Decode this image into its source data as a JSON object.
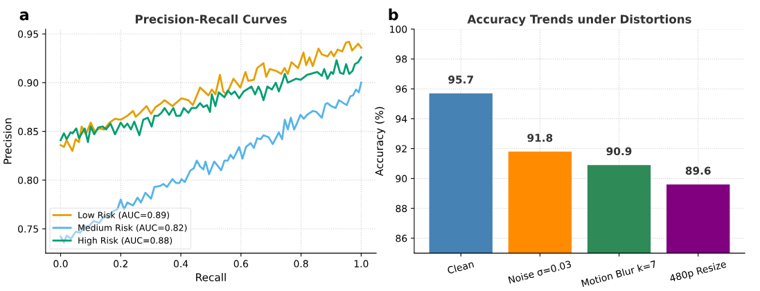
{
  "chart_data": [
    {
      "type": "line",
      "title": "Precision-Recall Curves",
      "xlabel": "Recall",
      "ylabel": "Precision",
      "annotations": [
        "a"
      ],
      "xlim": [
        -0.05,
        1.05
      ],
      "ylim": [
        0.725,
        0.955
      ],
      "xticks": [
        {
          "value": 0,
          "label": "0.0"
        },
        0.2,
        0.4,
        0.6,
        0.8,
        {
          "value": 1,
          "label": "1.0"
        }
      ],
      "yticks": [
        0.75,
        {
          "value": 0.8,
          "label": "0.80"
        },
        0.85,
        {
          "value": 0.9,
          "label": "0.90"
        },
        0.95
      ],
      "grid": true,
      "legend": "bottom left",
      "series": [
        {
          "name": "Low Risk (AUC=0.89)",
          "color": "#e69f00",
          "x": [
            0.0,
            0.011,
            0.02,
            0.039,
            0.05,
            0.061,
            0.07,
            0.084,
            0.1,
            0.114,
            0.129,
            0.144,
            0.163,
            0.181,
            0.2,
            0.222,
            0.241,
            0.25,
            0.264,
            0.286,
            0.301,
            0.316,
            0.331,
            0.346,
            0.372,
            0.402,
            0.425,
            0.44,
            0.464,
            0.492,
            0.503,
            0.515,
            0.53,
            0.541,
            0.552,
            0.575,
            0.598,
            0.615,
            0.624,
            0.643,
            0.654,
            0.675,
            0.684,
            0.696,
            0.718,
            0.734,
            0.745,
            0.756,
            0.768,
            0.79,
            0.808,
            0.817,
            0.828,
            0.839,
            0.858,
            0.869,
            0.888,
            0.9,
            0.909,
            0.922,
            0.937,
            0.949,
            0.96,
            0.97,
            0.99,
            1.0
          ],
          "values": [
            0.836,
            0.834,
            0.841,
            0.83,
            0.842,
            0.839,
            0.855,
            0.847,
            0.859,
            0.85,
            0.853,
            0.852,
            0.859,
            0.863,
            0.862,
            0.866,
            0.871,
            0.865,
            0.869,
            0.876,
            0.868,
            0.875,
            0.878,
            0.882,
            0.876,
            0.884,
            0.882,
            0.877,
            0.895,
            0.887,
            0.893,
            0.888,
            0.908,
            0.891,
            0.888,
            0.904,
            0.895,
            0.911,
            0.902,
            0.903,
            0.915,
            0.92,
            0.906,
            0.914,
            0.912,
            0.909,
            0.915,
            0.909,
            0.921,
            0.915,
            0.931,
            0.918,
            0.926,
            0.917,
            0.935,
            0.929,
            0.927,
            0.932,
            0.927,
            0.934,
            0.932,
            0.941,
            0.942,
            0.933,
            0.94,
            0.936
          ]
        },
        {
          "name": "Medium Risk (AUC=0.82)",
          "color": "#56b4e9",
          "x": [
            0.0,
            0.011,
            0.02,
            0.035,
            0.05,
            0.065,
            0.08,
            0.095,
            0.11,
            0.129,
            0.144,
            0.159,
            0.174,
            0.189,
            0.2,
            0.211,
            0.222,
            0.241,
            0.256,
            0.267,
            0.282,
            0.301,
            0.312,
            0.331,
            0.342,
            0.354,
            0.372,
            0.384,
            0.395,
            0.402,
            0.413,
            0.432,
            0.443,
            0.453,
            0.464,
            0.475,
            0.482,
            0.494,
            0.503,
            0.511,
            0.522,
            0.534,
            0.545,
            0.556,
            0.565,
            0.575,
            0.594,
            0.605,
            0.617,
            0.632,
            0.643,
            0.654,
            0.666,
            0.675,
            0.692,
            0.706,
            0.726,
            0.737,
            0.746,
            0.756,
            0.766,
            0.777,
            0.786,
            0.798,
            0.809,
            0.82,
            0.839,
            0.851,
            0.869,
            0.881,
            0.888,
            0.9,
            0.915,
            0.926,
            0.941,
            0.952,
            0.964,
            0.973,
            0.983,
            0.992,
            1.0
          ],
          "values": [
            0.742,
            0.736,
            0.743,
            0.74,
            0.747,
            0.746,
            0.752,
            0.753,
            0.758,
            0.756,
            0.763,
            0.762,
            0.768,
            0.77,
            0.78,
            0.77,
            0.777,
            0.774,
            0.782,
            0.777,
            0.787,
            0.781,
            0.793,
            0.794,
            0.796,
            0.793,
            0.801,
            0.797,
            0.797,
            0.801,
            0.798,
            0.81,
            0.812,
            0.82,
            0.814,
            0.811,
            0.819,
            0.806,
            0.813,
            0.819,
            0.815,
            0.81,
            0.82,
            0.82,
            0.826,
            0.822,
            0.834,
            0.822,
            0.834,
            0.838,
            0.833,
            0.843,
            0.842,
            0.846,
            0.844,
            0.837,
            0.849,
            0.842,
            0.862,
            0.852,
            0.864,
            0.852,
            0.858,
            0.867,
            0.863,
            0.867,
            0.871,
            0.87,
            0.864,
            0.878,
            0.879,
            0.876,
            0.874,
            0.882,
            0.879,
            0.877,
            0.886,
            0.887,
            0.893,
            0.89,
            0.9
          ]
        },
        {
          "name": "High Risk (AUC=0.88)",
          "color": "#009e73",
          "x": [
            0.0,
            0.011,
            0.02,
            0.033,
            0.04,
            0.052,
            0.061,
            0.08,
            0.091,
            0.1,
            0.112,
            0.125,
            0.14,
            0.151,
            0.166,
            0.181,
            0.2,
            0.211,
            0.222,
            0.234,
            0.245,
            0.262,
            0.275,
            0.29,
            0.303,
            0.312,
            0.324,
            0.335,
            0.346,
            0.361,
            0.375,
            0.385,
            0.398,
            0.41,
            0.425,
            0.436,
            0.451,
            0.464,
            0.475,
            0.487,
            0.497,
            0.503,
            0.515,
            0.526,
            0.545,
            0.556,
            0.568,
            0.579,
            0.594,
            0.609,
            0.635,
            0.647,
            0.658,
            0.666,
            0.675,
            0.688,
            0.703,
            0.716,
            0.726,
            0.737,
            0.746,
            0.756,
            0.783,
            0.799,
            0.82,
            0.854,
            0.869,
            0.877,
            0.888,
            0.9,
            0.907,
            0.918,
            0.93,
            0.941,
            0.95,
            0.96,
            0.971,
            0.979,
            0.99,
            1.0
          ],
          "values": [
            0.841,
            0.848,
            0.842,
            0.849,
            0.848,
            0.853,
            0.843,
            0.853,
            0.839,
            0.855,
            0.847,
            0.854,
            0.855,
            0.852,
            0.858,
            0.847,
            0.859,
            0.854,
            0.858,
            0.852,
            0.86,
            0.846,
            0.862,
            0.864,
            0.855,
            0.866,
            0.866,
            0.869,
            0.874,
            0.867,
            0.874,
            0.866,
            0.866,
            0.874,
            0.869,
            0.874,
            0.874,
            0.879,
            0.875,
            0.877,
            0.87,
            0.888,
            0.876,
            0.89,
            0.885,
            0.892,
            0.888,
            0.891,
            0.884,
            0.891,
            0.896,
            0.888,
            0.896,
            0.891,
            0.882,
            0.896,
            0.893,
            0.9,
            0.891,
            0.9,
            0.909,
            0.9,
            0.904,
            0.903,
            0.908,
            0.911,
            0.907,
            0.914,
            0.904,
            0.911,
            0.909,
            0.923,
            0.91,
            0.909,
            0.919,
            0.909,
            0.912,
            0.919,
            0.921,
            0.926
          ]
        }
      ]
    },
    {
      "type": "bar",
      "title": "Accuracy Trends under Distortions",
      "ylabel": "Accuracy (%)",
      "annotations": [
        "b"
      ],
      "categories": [
        "Clean",
        "Noise σ=0.03",
        "Motion Blur k=7",
        "480p Resize"
      ],
      "values": [
        95.7,
        91.8,
        90.9,
        89.6
      ],
      "colors": [
        "#4682b4",
        "#ff8c00",
        "#2e8b57",
        "#800080"
      ],
      "ylim": [
        85,
        100
      ],
      "yticks": [
        86,
        88,
        90,
        92,
        94,
        96,
        98,
        100
      ],
      "grid": true,
      "data_labels": true
    }
  ]
}
